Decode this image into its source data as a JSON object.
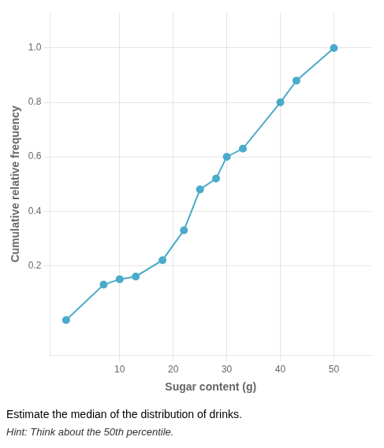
{
  "chart_data": {
    "type": "line",
    "title": "Estimate the median of the distribution of drinks.",
    "subtitle": "Hint: Think about the 50th percentile.",
    "x_label": "Sugar content (g)",
    "y_label": "Cumulative relative frequency",
    "x": [
      0,
      7,
      10,
      13,
      18,
      22,
      25,
      28,
      30,
      33,
      40,
      43,
      50
    ],
    "values": [
      0,
      0.13,
      0.15,
      0.16,
      0.22,
      0.33,
      0.48,
      0.52,
      0.6,
      0.63,
      0.8,
      0.88,
      1.0
    ],
    "color": "#4aabca",
    "marker": "circle",
    "xlim": [
      -3,
      57
    ],
    "ylim": [
      -0.13,
      1.13
    ],
    "xticks": [
      10,
      20,
      30,
      40,
      50
    ],
    "yticks": [
      0.2,
      0.4,
      0.6,
      0.8,
      {
        "value": 1.0,
        "label": "1.0"
      }
    ],
    "grid": true
  }
}
